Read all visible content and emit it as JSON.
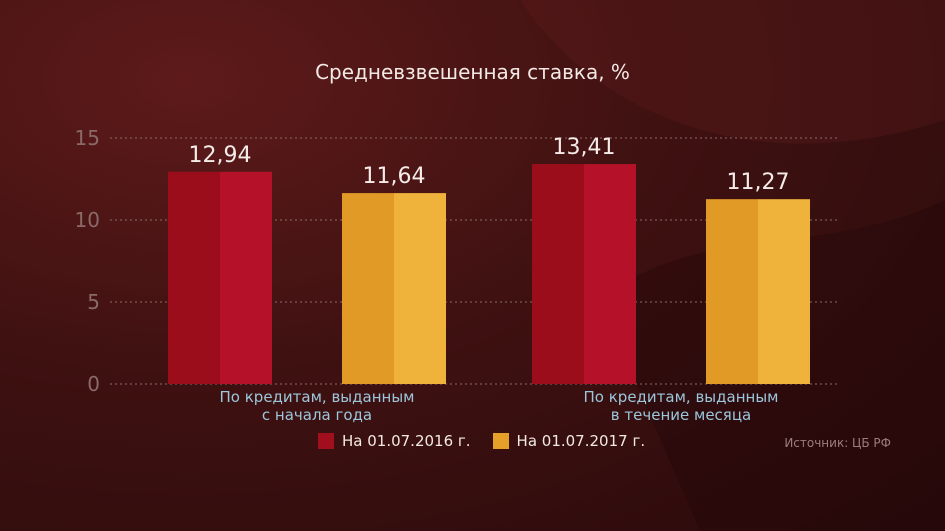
{
  "title": "Средневзвешенная ставка, %",
  "source": "Источник: ЦБ РФ",
  "colors": {
    "series_2016": "#a10f1e",
    "series_2017": "#e5a02a",
    "grid": "#8a6a68"
  },
  "chart_data": {
    "type": "bar",
    "title": "Средневзвешенная ставка, %",
    "xlabel": "",
    "ylabel": "",
    "ylim": [
      0,
      15
    ],
    "yticks": [
      0,
      5,
      10,
      15
    ],
    "grid": "dotted horizontal",
    "legend_position": "bottom",
    "categories": [
      [
        "По кредитам, выданным",
        "с начала года"
      ],
      [
        "По кредитам, выданным",
        "в течение месяца"
      ]
    ],
    "series": [
      {
        "name": "На 01.07.2016 г.",
        "values": [
          12.94,
          13.41
        ],
        "labels": [
          "12,94",
          "13,41"
        ]
      },
      {
        "name": "На 01.07.2017 г.",
        "values": [
          11.64,
          11.27
        ],
        "labels": [
          "11,64",
          "11,27"
        ]
      }
    ]
  }
}
